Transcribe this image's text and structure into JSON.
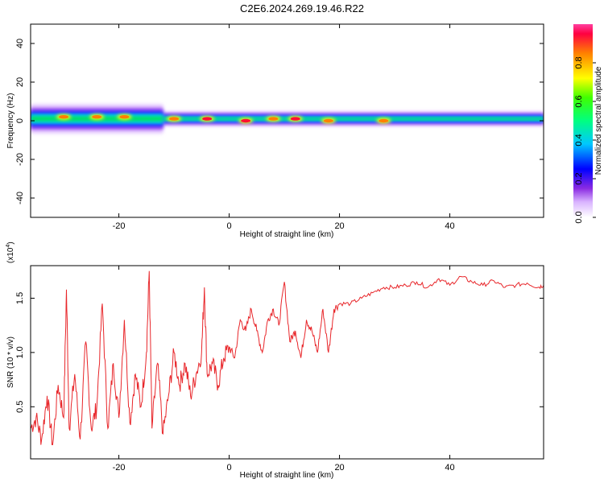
{
  "title": "C2E6.2024.269.19.46.R22",
  "chart_data": [
    {
      "type": "heatmap",
      "name": "spectrogram",
      "xlabel": "Height of straight line (km)",
      "ylabel": "Frequency (Hz)",
      "xlim": [
        -36,
        57
      ],
      "ylim": [
        -50,
        50
      ],
      "xticks": [
        -20,
        0,
        20,
        40
      ],
      "yticks": [
        -40,
        -20,
        0,
        20,
        40
      ],
      "xtick_labels": [
        "-20",
        "0",
        "20",
        "40"
      ],
      "ytick_labels": [
        "-40",
        "-20",
        "0",
        "20",
        "40"
      ],
      "colorbar": {
        "label": "Normalized spectral amplitude",
        "range": [
          0,
          1
        ],
        "ticks": [
          0.0,
          0.2,
          0.4,
          0.6,
          0.8
        ],
        "tick_labels": [
          "0.0",
          "0.2",
          "0.4",
          "0.6",
          "0.8"
        ]
      },
      "band": {
        "center_hz": 1,
        "segments": [
          {
            "x": [
              -36,
              -12
            ],
            "halfwidth_hz": 4
          },
          {
            "x": [
              -12,
              57
            ],
            "halfwidth_hz": 2
          }
        ],
        "peaks": [
          {
            "x": -30,
            "y": 2,
            "amp": 0.7
          },
          {
            "x": -24,
            "y": 2,
            "amp": 0.75
          },
          {
            "x": -19,
            "y": 2,
            "amp": 0.7
          },
          {
            "x": -10,
            "y": 1,
            "amp": 0.85
          },
          {
            "x": -4,
            "y": 1,
            "amp": 0.9
          },
          {
            "x": 3,
            "y": 0,
            "amp": 0.95
          },
          {
            "x": 8,
            "y": 1,
            "amp": 0.75
          },
          {
            "x": 12,
            "y": 1,
            "amp": 0.95
          },
          {
            "x": 18,
            "y": 0,
            "amp": 0.85
          },
          {
            "x": 28,
            "y": 0,
            "amp": 0.8
          }
        ]
      }
    },
    {
      "type": "line",
      "name": "snr",
      "xlabel": "Height of straight line (km)",
      "ylabel": "SNR (10 * v/v)",
      "multiplier": "(x10",
      "multiplier_exp": "4",
      "multiplier_close": ")",
      "xlim": [
        -36,
        57
      ],
      "ylim": [
        0.02,
        1.8
      ],
      "xticks": [
        -20,
        0,
        20,
        40
      ],
      "yticks": [
        0.5,
        1.0,
        1.5
      ],
      "xtick_labels": [
        "-20",
        "0",
        "20",
        "40"
      ],
      "ytick_labels": [
        "0.5",
        "1.0",
        "1.5"
      ],
      "color": "#e8262a",
      "series": [
        {
          "x": [
            -36,
            -35,
            -34,
            -33,
            -32,
            -31,
            -30,
            -29.5,
            -29,
            -28,
            -27,
            -26,
            -25,
            -24,
            -23,
            -22,
            -21,
            -20,
            -19,
            -18,
            -17,
            -16,
            -15,
            -14.5,
            -14,
            -13,
            -12,
            -11,
            -10,
            -9,
            -8,
            -7,
            -6,
            -5,
            -4.5,
            -4,
            -3,
            -2,
            -1,
            0,
            1,
            2,
            3,
            4,
            5,
            6,
            7,
            8,
            9,
            10,
            11,
            12,
            13,
            14,
            15,
            16,
            17,
            18,
            19,
            20,
            22,
            24,
            26,
            28,
            30,
            32,
            34,
            36,
            38,
            40,
            42,
            44,
            46,
            48,
            50,
            52,
            54,
            56,
            57
          ],
          "y": [
            0.3,
            0.4,
            0.2,
            0.6,
            0.15,
            0.7,
            0.4,
            1.58,
            0.3,
            0.8,
            0.2,
            1.1,
            0.3,
            0.5,
            1.45,
            0.3,
            0.9,
            0.4,
            1.3,
            0.35,
            0.8,
            0.5,
            1.0,
            1.75,
            0.3,
            0.9,
            0.25,
            0.6,
            1.0,
            0.7,
            0.9,
            0.6,
            0.8,
            1.0,
            1.6,
            0.8,
            0.9,
            0.7,
            0.95,
            1.05,
            0.95,
            1.3,
            1.2,
            1.4,
            1.2,
            1.0,
            1.3,
            1.4,
            1.25,
            1.65,
            1.1,
            1.2,
            0.95,
            1.3,
            1.2,
            1.0,
            1.4,
            1.0,
            1.4,
            1.45,
            1.45,
            1.5,
            1.55,
            1.6,
            1.6,
            1.62,
            1.65,
            1.6,
            1.68,
            1.62,
            1.7,
            1.65,
            1.62,
            1.66,
            1.6,
            1.62,
            1.64,
            1.6,
            1.62
          ]
        }
      ]
    }
  ]
}
